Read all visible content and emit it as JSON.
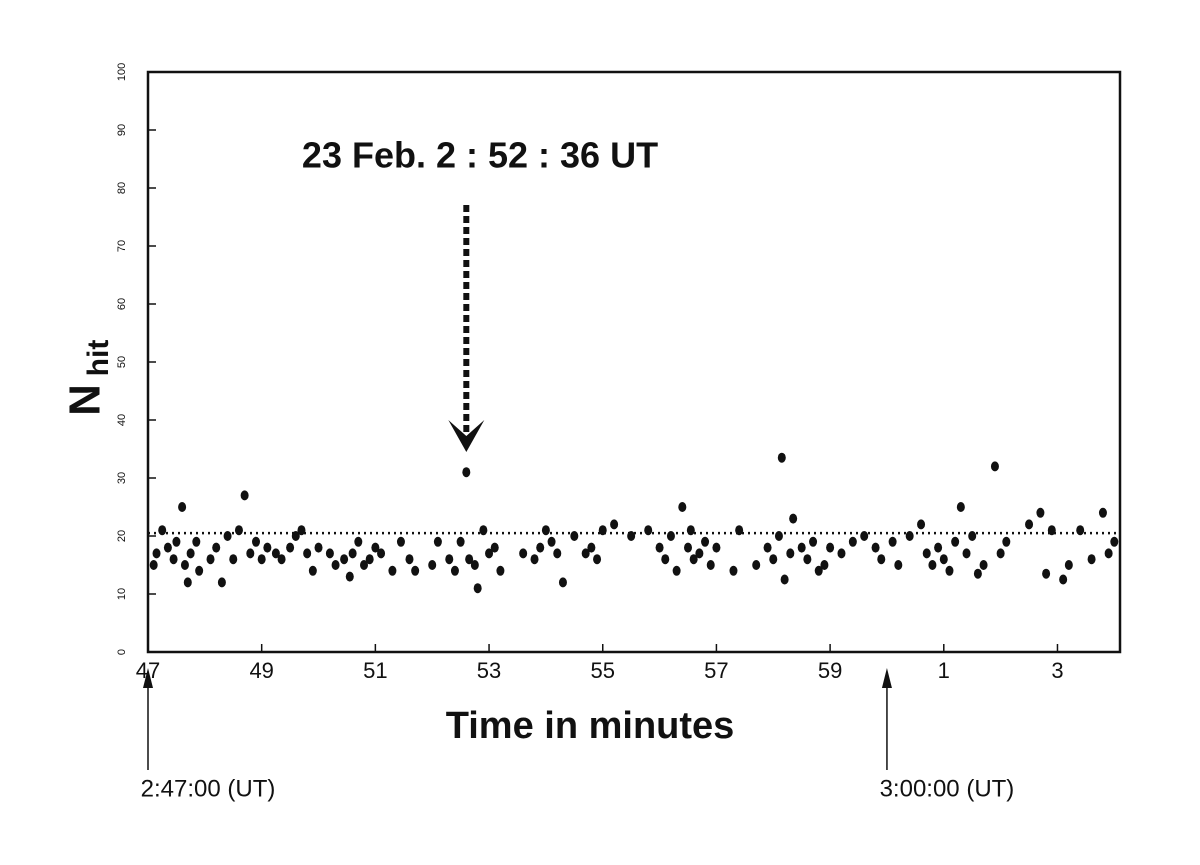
{
  "chart_data": {
    "type": "scatter",
    "annotation": {
      "text": "23 Feb. 2 : 52 : 36 UT",
      "x": 52.6
    },
    "xlabel": "Time in minutes",
    "ylabel": "N",
    "ylabel_subscript": "hit",
    "color": "#111111",
    "hline": 20.5,
    "xlim": [
      47,
      64.1
    ],
    "ylim": [
      0,
      100
    ],
    "xticks": [
      47,
      49,
      51,
      53,
      55,
      57,
      59,
      {
        "value": 61,
        "label": "1"
      },
      {
        "value": 63,
        "label": "3"
      }
    ],
    "yticks": [
      0,
      10,
      20,
      30,
      40,
      50,
      60,
      70,
      80,
      90,
      100
    ],
    "time_markers": [
      {
        "x": 47,
        "label": "2:47:00 (UT)"
      },
      {
        "x": 60,
        "label": "3:00:00 (UT)"
      }
    ],
    "x": [
      47.1,
      47.15,
      47.25,
      47.35,
      47.45,
      47.5,
      47.6,
      47.65,
      47.7,
      47.75,
      47.85,
      47.9,
      48.1,
      48.2,
      48.3,
      48.4,
      48.5,
      48.6,
      48.7,
      48.8,
      48.9,
      49.0,
      49.1,
      49.25,
      49.35,
      49.5,
      49.6,
      49.7,
      49.8,
      49.9,
      50.0,
      50.2,
      50.3,
      50.45,
      50.55,
      50.6,
      50.7,
      50.8,
      50.9,
      51.0,
      51.1,
      51.3,
      51.45,
      51.6,
      51.7,
      52.0,
      52.1,
      52.3,
      52.4,
      52.5,
      52.6,
      52.65,
      52.75,
      52.8,
      52.9,
      53.0,
      53.1,
      53.2,
      53.6,
      53.8,
      53.9,
      54.0,
      54.1,
      54.2,
      54.3,
      54.5,
      54.7,
      54.8,
      54.9,
      55.0,
      55.2,
      55.5,
      55.8,
      56.0,
      56.1,
      56.2,
      56.3,
      56.4,
      56.5,
      56.55,
      56.6,
      56.7,
      56.8,
      56.9,
      57.0,
      57.3,
      57.4,
      57.7,
      57.9,
      58.0,
      58.1,
      58.15,
      58.2,
      58.3,
      58.35,
      58.5,
      58.6,
      58.7,
      58.8,
      58.9,
      59.0,
      59.2,
      59.4,
      59.6,
      59.8,
      59.9,
      60.1,
      60.2,
      60.4,
      60.6,
      60.7,
      60.8,
      60.9,
      61.0,
      61.1,
      61.2,
      61.3,
      61.4,
      61.5,
      61.6,
      61.7,
      61.9,
      62.0,
      62.1,
      62.5,
      62.7,
      62.8,
      62.9,
      63.1,
      63.2,
      63.4,
      63.6,
      63.8,
      63.9,
      64.0
    ],
    "values": [
      15,
      17,
      21,
      18,
      16,
      19,
      25,
      15,
      12,
      17,
      19,
      14,
      16,
      18,
      12,
      20,
      16,
      21,
      27,
      17,
      19,
      16,
      18,
      17,
      16,
      18,
      20,
      21,
      17,
      14,
      18,
      17,
      15,
      16,
      13,
      17,
      19,
      15,
      16,
      18,
      17,
      14,
      19,
      16,
      14,
      15,
      19,
      16,
      14,
      19,
      31,
      16,
      15,
      11,
      21,
      17,
      18,
      14,
      17,
      16,
      18,
      21,
      19,
      17,
      12,
      20,
      17,
      18,
      16,
      21,
      22,
      20,
      21,
      18,
      16,
      20,
      14,
      25,
      18,
      21,
      16,
      17,
      19,
      15,
      18,
      14,
      21,
      15,
      18,
      16,
      20,
      33.5,
      12.5,
      17,
      23,
      18,
      16,
      19,
      14,
      15,
      18,
      17,
      19,
      20,
      18,
      16,
      19,
      15,
      20,
      22,
      17,
      15,
      18,
      16,
      14,
      19,
      25,
      17,
      20,
      13.5,
      15,
      32,
      17,
      19,
      22,
      24,
      13.5,
      21,
      12.5,
      15,
      21,
      16,
      24,
      17,
      19
    ]
  }
}
